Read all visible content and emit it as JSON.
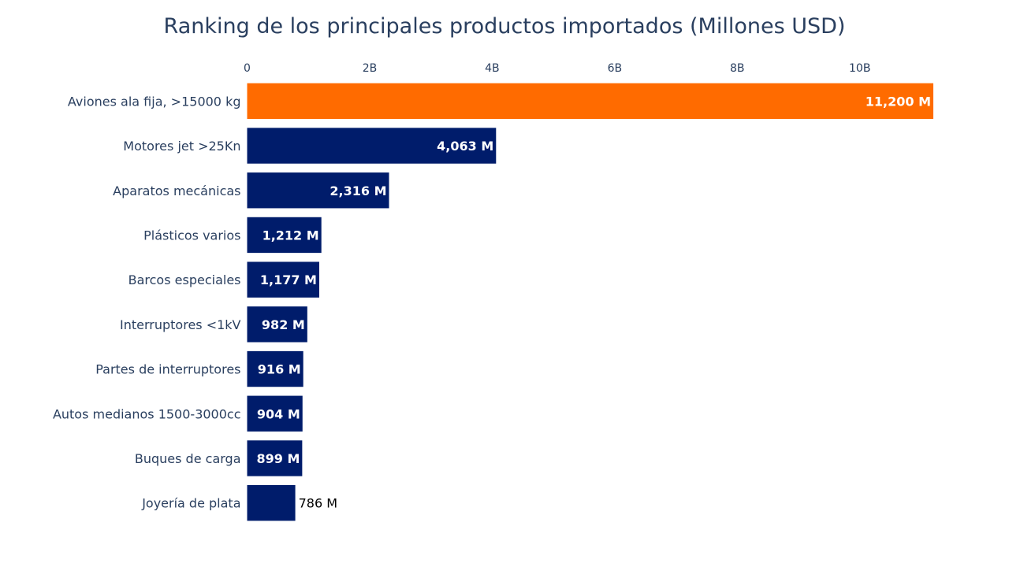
{
  "chart_data": {
    "type": "bar",
    "orientation": "horizontal",
    "title": "Ranking de los principales productos importados (Millones USD)",
    "xaxis": {
      "side": "top",
      "ticks": [
        0,
        2000000000,
        4000000000,
        6000000000,
        8000000000,
        10000000000
      ],
      "tick_labels": [
        "0",
        "2B",
        "4B",
        "6B",
        "8B",
        "10B"
      ],
      "range": [
        0,
        11200000000
      ],
      "grid": false
    },
    "categories": [
      "Aviones ala fija, >15000 kg",
      "Motores jet >25Kn",
      "Aparatos mecánicas",
      "Plásticos varios",
      "Barcos especiales",
      "Interruptores <1kV",
      "Partes de interruptores",
      "Autos medianos 1500-3000cc",
      "Buques de carga",
      "Joyería de plata"
    ],
    "values": [
      11200000000,
      4063000000,
      2316000000,
      1212000000,
      1177000000,
      982000000,
      916000000,
      904000000,
      899000000,
      786000000
    ],
    "value_labels": [
      "11,200 M",
      "4,063 M",
      "2,316 M",
      "1,212 M",
      "1,177 M",
      "982 M",
      "916 M",
      "904 M",
      "899 M",
      "786 M"
    ],
    "label_position": [
      "inside",
      "inside",
      "inside",
      "inside",
      "inside",
      "inside",
      "inside",
      "inside",
      "inside",
      "outside"
    ],
    "bar_colors": [
      "#ff6b00",
      "#001c6b",
      "#001c6b",
      "#001c6b",
      "#001c6b",
      "#001c6b",
      "#001c6b",
      "#001c6b",
      "#001c6b",
      "#001c6b"
    ],
    "colors": {
      "highlight": "#ff6b00",
      "default": "#001c6b",
      "text": "#2a3f5f",
      "inside_label": "#ffffff",
      "outside_label": "#000000"
    },
    "legend": "none"
  }
}
